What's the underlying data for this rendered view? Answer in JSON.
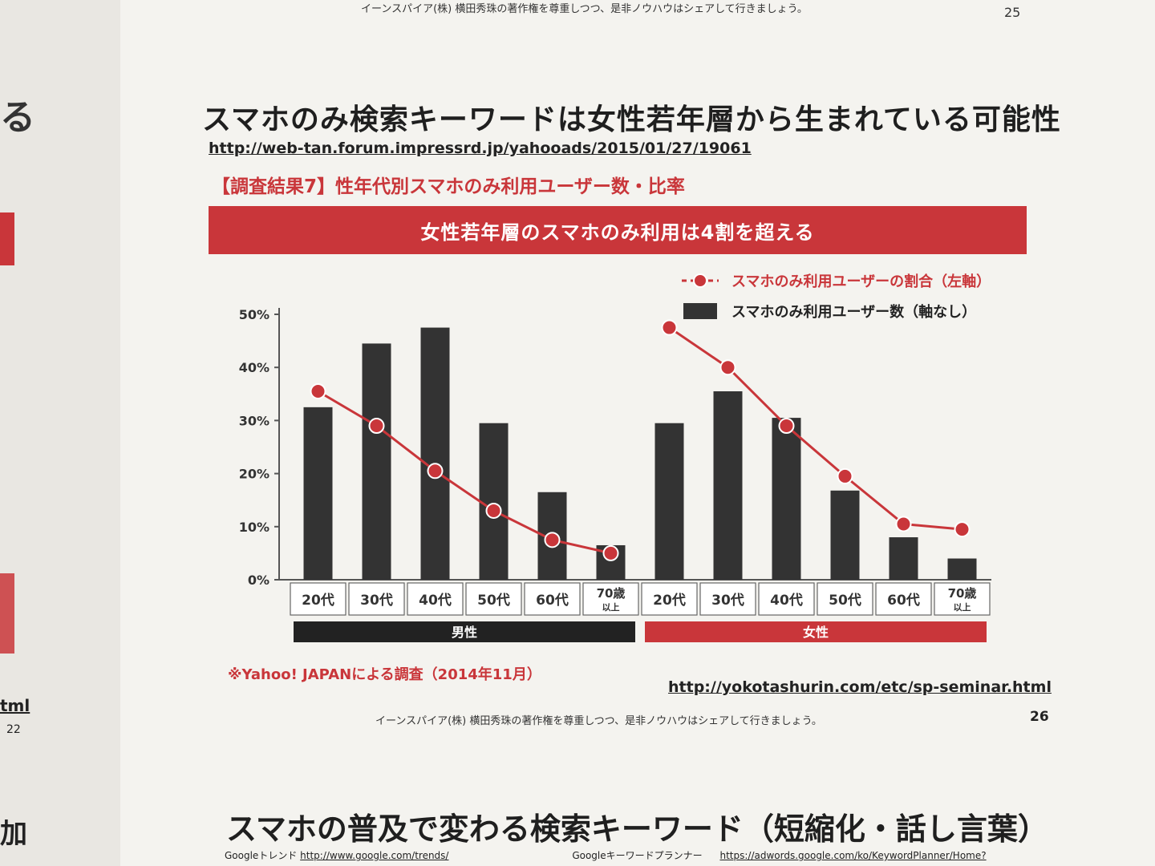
{
  "left_page": {
    "glyph": "る",
    "url_fragment": "tml",
    "page_number": "22",
    "bottom_glyph": "加"
  },
  "header": {
    "prev_footer": "イーンスパイア(株) 横田秀珠の著作権を尊重しつつ、是非ノウハウはシェアして行きましょう。",
    "prev_page_number": "25"
  },
  "slide": {
    "title": "スマホのみ検索キーワードは女性若年層から生まれている可能性",
    "source_url": "http://web-tan.forum.impressrd.jp/yahooads/2015/01/27/19061",
    "subtitle": "【調査結果7】性年代別スマホのみ利用ユーザー数・比率",
    "banner": "女性若年層のスマホのみ利用は4割を超える",
    "note": "※Yahoo! JAPANによる調査（2014年11月）",
    "footer_url": "http://yokotashurin.com/etc/sp-seminar.html",
    "footer_copy": "イーンスパイア(株) 横田秀珠の著作権を尊重しつつ、是非ノウハウはシェアして行きましょう。",
    "page_number": "26"
  },
  "next_slide": {
    "title": "スマホの普及で変わる検索キーワード（短縮化・話し言葉）",
    "sub_left_label": "Googleトレンド",
    "sub_left_url": "http://www.google.com/trends/",
    "sub_right_label": "Googleキーワードプランナー",
    "sub_right_url": "https://adwords.google.com/ko/KeywordPlanner/Home?"
  },
  "colors": {
    "accent": "#c9363a",
    "bar": "#333333",
    "page": "#f4f3ef"
  },
  "chart_data": {
    "type": "bar",
    "categories": [
      "20代",
      "30代",
      "40代",
      "50代",
      "60代",
      "70歳以上",
      "20代",
      "30代",
      "40代",
      "50代",
      "60代",
      "70歳以上"
    ],
    "category_labels": [
      [
        "20代"
      ],
      [
        "30代"
      ],
      [
        "40代"
      ],
      [
        "50代"
      ],
      [
        "60代"
      ],
      [
        "70歳",
        "以上"
      ],
      [
        "20代"
      ],
      [
        "30代"
      ],
      [
        "40代"
      ],
      [
        "50代"
      ],
      [
        "60代"
      ],
      [
        "70歳",
        "以上"
      ]
    ],
    "groups": [
      {
        "name": "男性",
        "start": 0,
        "count": 6
      },
      {
        "name": "女性",
        "start": 6,
        "count": 6
      }
    ],
    "series": [
      {
        "name": "スマホのみ利用ユーザー数（軸なし）",
        "kind": "bar",
        "axis": "none",
        "values": [
          32.5,
          44.5,
          47.5,
          29.5,
          16.5,
          6.5,
          29.5,
          35.5,
          30.5,
          16.8,
          8,
          4
        ]
      },
      {
        "name": "スマホのみ利用ユーザーの割合（左軸）",
        "kind": "line",
        "axis": "left",
        "values": [
          35.5,
          29,
          20.5,
          13,
          7.5,
          5,
          47.5,
          40,
          29,
          19.5,
          10.5,
          9.5
        ]
      }
    ],
    "yticks": [
      "0%",
      "10%",
      "20%",
      "30%",
      "40%",
      "50%"
    ],
    "ylim": [
      0,
      50
    ],
    "legend": "top-right"
  }
}
